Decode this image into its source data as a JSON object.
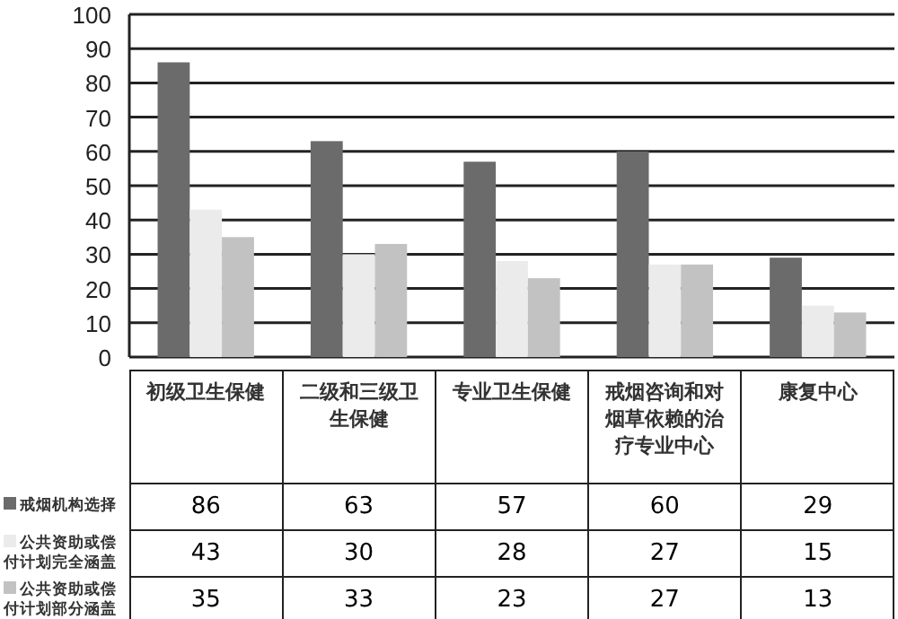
{
  "chart_data": {
    "type": "bar",
    "categories": [
      "初级卫生保健",
      "二级和三级卫生保健",
      "专业卫生保健",
      "戒烟咨询和对烟草依赖的治疗专业中心",
      "康复中心"
    ],
    "series": [
      {
        "name": "戒烟机构选择",
        "color": "#6b6b6b",
        "values": [
          86,
          63,
          57,
          60,
          29
        ]
      },
      {
        "name": "公共资助或偿付计划完全涵盖",
        "color": "#ebebeb",
        "values": [
          43,
          30,
          28,
          27,
          15
        ]
      },
      {
        "name": "公共资助或偿付计划部分涵盖",
        "color": "#c2c2c2",
        "values": [
          35,
          33,
          23,
          27,
          13
        ]
      }
    ],
    "ylim": [
      0,
      100
    ],
    "yticks": [
      0,
      10,
      20,
      30,
      40,
      50,
      60,
      70,
      80,
      90,
      100
    ],
    "grid": "y",
    "legend": "bottom left",
    "data_labels": true
  }
}
